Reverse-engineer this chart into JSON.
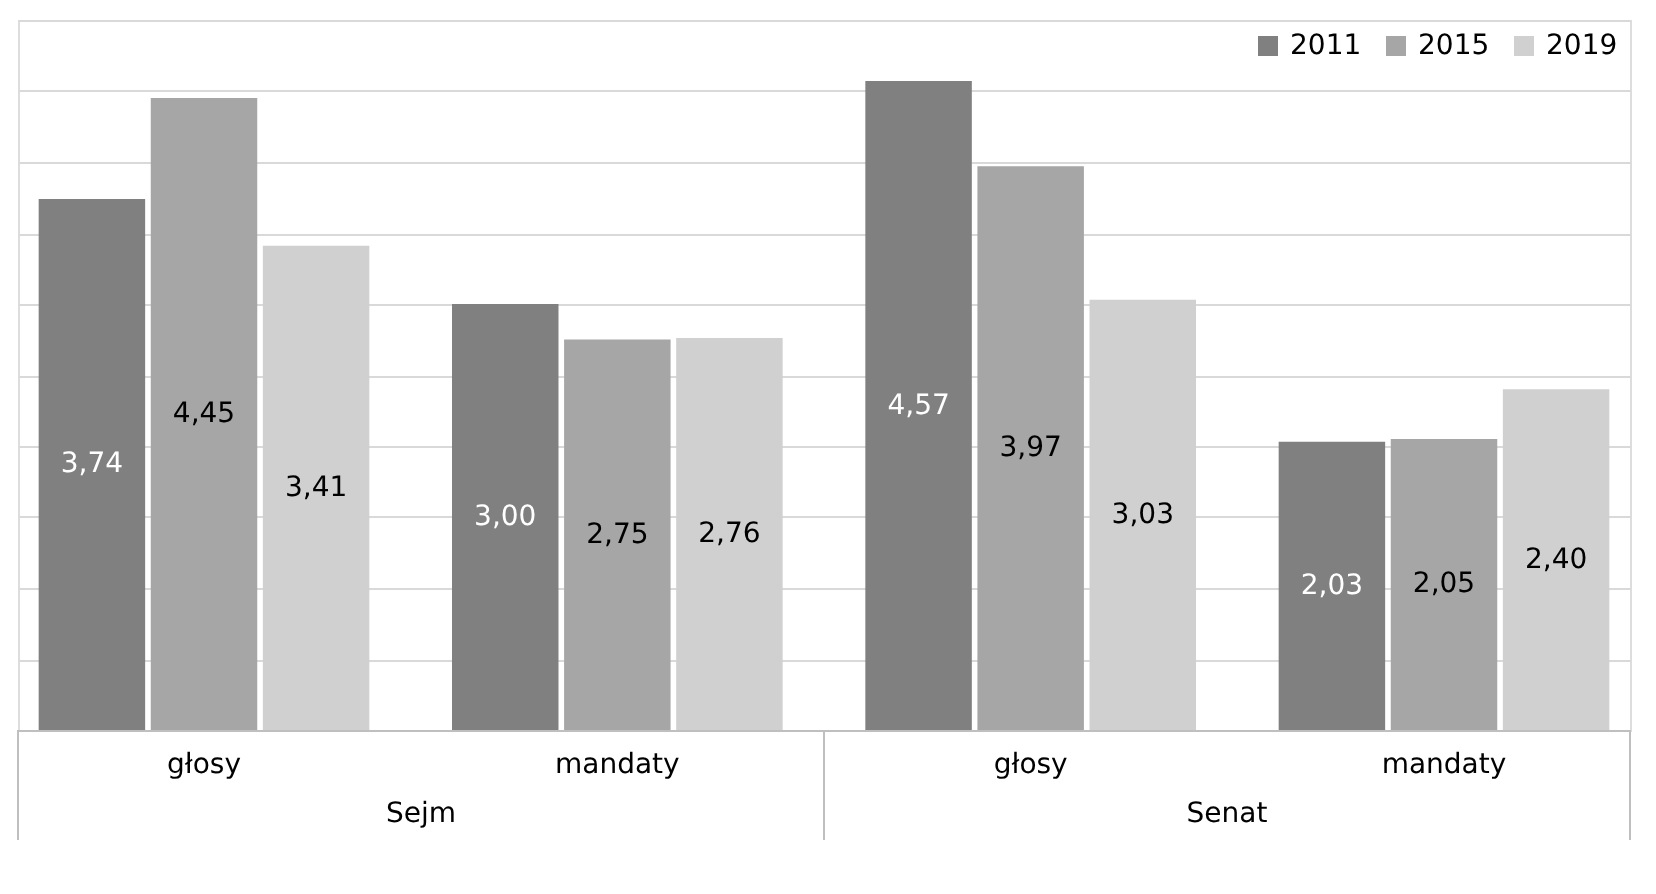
{
  "chart_data": {
    "type": "bar",
    "categories": [
      "głosy",
      "mandaty",
      "głosy",
      "mandaty"
    ],
    "series": [
      {
        "name": "2011",
        "color": "#808080",
        "values": [
          3.74,
          3.0,
          4.57,
          2.03
        ],
        "value_labels": [
          "3,74",
          "3,00",
          "4,57",
          "2,03"
        ]
      },
      {
        "name": "2015",
        "color": "#a6a6a6",
        "values": [
          4.45,
          2.75,
          3.97,
          2.05
        ],
        "value_labels": [
          "4,45",
          "2,75",
          "3,97",
          "2,05"
        ]
      },
      {
        "name": "2019",
        "color": "#d0d0d0",
        "values": [
          3.41,
          2.76,
          3.03,
          2.4
        ],
        "value_labels": [
          "3,41",
          "2,76",
          "3,03",
          "2,40"
        ]
      }
    ],
    "annotations": [
      "Sejm",
      "Senat"
    ],
    "ylim": [
      0,
      5
    ],
    "tick_labels": "x",
    "grid": "y",
    "legend": "top right"
  }
}
